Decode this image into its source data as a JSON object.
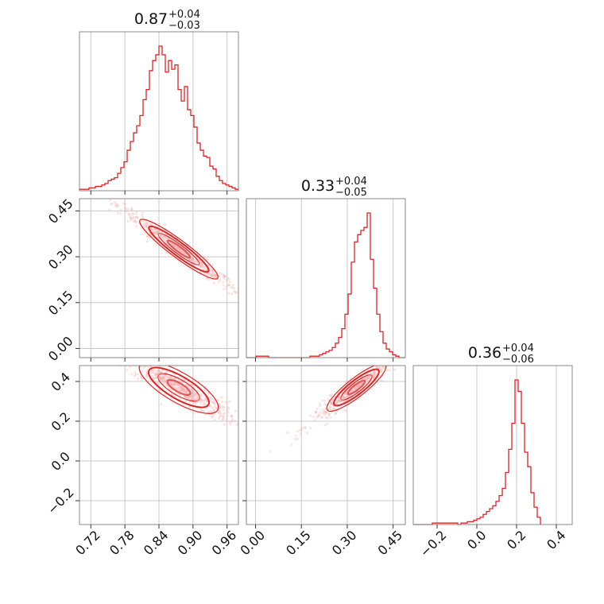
{
  "colors": {
    "accent": "#d62728",
    "fill": "#f2a5a5",
    "grid": "#c8c8c8",
    "frame": "#888888"
  },
  "chart_data": {
    "type": "corner",
    "title": "",
    "params": [
      {
        "index": 0,
        "median": "0.87",
        "plus": "+0.04",
        "minus": "−0.03",
        "range": [
          0.7,
          0.98
        ],
        "ticks": [
          0.72,
          0.78,
          0.84,
          0.9,
          0.96
        ],
        "tick_labels": [
          "0.72",
          "0.78",
          "0.84",
          "0.90",
          "0.96"
        ]
      },
      {
        "index": 1,
        "median": "0.33",
        "plus": "+0.04",
        "minus": "−0.05",
        "range": [
          -0.03,
          0.49
        ],
        "ticks": [
          0.0,
          0.15,
          0.3,
          0.45
        ],
        "tick_labels": [
          "0.00",
          "0.15",
          "0.30",
          "0.45"
        ]
      },
      {
        "index": 2,
        "median": "0.36",
        "plus": "+0.04",
        "minus": "−0.06",
        "range": [
          -0.32,
          0.48
        ],
        "ticks": [
          -0.2,
          0.0,
          0.2,
          0.4
        ],
        "tick_labels": [
          "−0.2",
          "0.0",
          "0.2",
          "0.4"
        ]
      }
    ],
    "histograms": [
      {
        "param": 0,
        "bin_start": 0.7,
        "bin_width": 0.0056,
        "counts": [
          1,
          1,
          1,
          2,
          2,
          3,
          3,
          4,
          5,
          7,
          8,
          9,
          12,
          16,
          20,
          28,
          34,
          40,
          45,
          52,
          63,
          70,
          83,
          90,
          94,
          100,
          94,
          82,
          90,
          84,
          87,
          70,
          62,
          72,
          56,
          52,
          44,
          33,
          28,
          24,
          23,
          17,
          15,
          10,
          7,
          5,
          4,
          3,
          2,
          1
        ]
      },
      {
        "param": 1,
        "bin_start": -0.03,
        "bin_width": 0.0104,
        "counts": [
          0,
          0,
          0,
          1,
          1,
          1,
          1,
          0,
          0,
          0,
          0,
          0,
          0,
          0,
          0,
          0,
          0,
          0,
          0,
          0,
          1,
          1,
          1,
          2,
          3,
          4,
          5,
          7,
          10,
          14,
          20,
          30,
          44,
          66,
          80,
          85,
          88,
          90,
          100,
          68,
          48,
          30,
          18,
          10,
          6,
          4,
          2,
          1,
          0,
          0
        ]
      },
      {
        "param": 2,
        "bin_start": -0.32,
        "bin_width": 0.016,
        "counts": [
          0,
          0,
          0,
          0,
          0,
          0,
          1,
          1,
          1,
          1,
          1,
          1,
          1,
          1,
          0,
          1,
          1,
          2,
          2,
          3,
          4,
          5,
          7,
          9,
          11,
          13,
          16,
          20,
          25,
          36,
          52,
          70,
          100,
          92,
          70,
          50,
          40,
          22,
          12,
          5
        ]
      }
    ],
    "pairs": [
      {
        "x": 0,
        "y": 1,
        "center": [
          0.875,
          0.325
        ],
        "corr": -0.98,
        "spread_x": 0.036,
        "spread_y": 0.05
      },
      {
        "x": 0,
        "y": 2,
        "center": [
          0.875,
          0.37
        ],
        "corr": -0.93,
        "spread_x": 0.036,
        "spread_y": 0.06
      },
      {
        "x": 1,
        "y": 2,
        "center": [
          0.33,
          0.37
        ],
        "corr": 0.96,
        "spread_x": 0.05,
        "spread_y": 0.06
      }
    ]
  }
}
